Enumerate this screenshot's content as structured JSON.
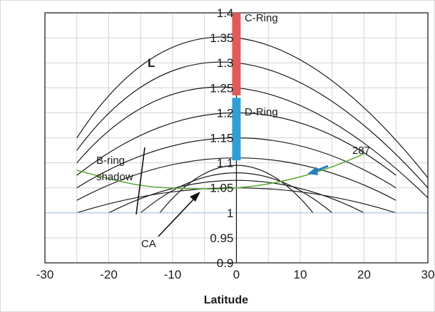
{
  "chart_data": {
    "type": "line",
    "xlabel": "Latitude",
    "ylabel": "",
    "xlim": [
      -30,
      30
    ],
    "ylim": [
      0.9,
      1.4
    ],
    "x_ticks": [
      "-30",
      "-20",
      "-10",
      "0",
      "10",
      "20",
      "30"
    ],
    "y_ticks": [
      "0.9",
      "0.95",
      "1",
      "1.05",
      "1.1",
      "1.15",
      "1.2",
      "1.25",
      "1.3",
      "1.35",
      "1.4"
    ],
    "grid": true,
    "reference_line_y": 1.0,
    "l_shell_label": "L",
    "l_shell_curves": [
      {
        "x": [
          -25,
          0,
          25
        ],
        "y": [
          1.0,
          1.05,
          1.0
        ]
      },
      {
        "x": [
          -20,
          0,
          20
        ],
        "y": [
          1.0,
          1.065,
          1.0
        ]
      },
      {
        "x": [
          -15,
          0,
          15
        ],
        "y": [
          1.0,
          1.08,
          1.0
        ]
      },
      {
        "x": [
          -12,
          0,
          12
        ],
        "y": [
          1.0,
          1.095,
          1.0
        ]
      },
      {
        "x": [
          -25,
          0,
          25
        ],
        "y": [
          1.025,
          1.11,
          1.025
        ]
      },
      {
        "x": [
          -25,
          0,
          25
        ],
        "y": [
          1.05,
          1.15,
          1.05
        ]
      },
      {
        "x": [
          -25,
          0,
          25
        ],
        "y": [
          1.075,
          1.2,
          1.075
        ]
      },
      {
        "x": [
          -25,
          0,
          30
        ],
        "y": [
          1.1,
          1.25,
          1.03
        ]
      },
      {
        "x": [
          -25,
          0,
          30
        ],
        "y": [
          1.125,
          1.3,
          1.05
        ]
      },
      {
        "x": [
          -25,
          0,
          30
        ],
        "y": [
          1.15,
          1.35,
          1.07
        ]
      }
    ],
    "trajectory": {
      "name": "287",
      "color": "#5aa832",
      "x": [
        -25,
        -15,
        -5,
        0,
        5,
        10,
        15,
        20
      ],
      "y": [
        1.085,
        1.055,
        1.048,
        1.05,
        1.058,
        1.072,
        1.092,
        1.118
      ]
    },
    "rings": [
      {
        "name": "C-Ring",
        "color": "#e05a5a",
        "y_range": [
          1.235,
          1.4
        ]
      },
      {
        "name": "D-Ring",
        "color": "#2fa0d6",
        "y_range": [
          1.105,
          1.23
        ]
      }
    ],
    "annotations": {
      "b_ring_shadow": {
        "line1": "B-ring",
        "line2": "shadow"
      },
      "ca": "CA",
      "trajectory_label": "287"
    }
  }
}
